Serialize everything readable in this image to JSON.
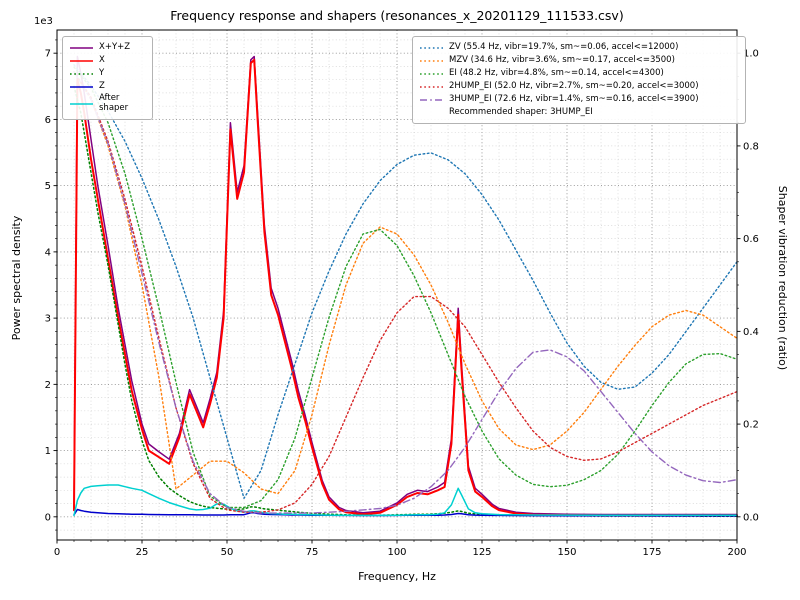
{
  "chart_data": {
    "type": "line",
    "title": "Frequency response and shapers (resonances_x_20201129_111533.csv)",
    "xlabel": "Frequency, Hz",
    "ylabel_left": "Power spectral density",
    "ylabel_right": "Shaper vibration reduction (ratio)",
    "offset_text": "1e3",
    "recommended_text": "Recommended shaper: 3HUMP_EI",
    "grid": "both",
    "xlim": [
      0,
      200
    ],
    "ylim_left": [
      -350,
      7350
    ],
    "ylim_right": [
      -0.05,
      1.05
    ],
    "xticks": [
      0,
      25,
      50,
      75,
      100,
      125,
      150,
      175,
      200
    ],
    "xtick_labels": [
      "0",
      "25",
      "50",
      "75",
      "100",
      "125",
      "150",
      "175",
      "200"
    ],
    "yticks_left": [
      0,
      1000,
      2000,
      3000,
      4000,
      5000,
      6000,
      7000
    ],
    "ytick_labels_left": [
      "0",
      "1",
      "2",
      "3",
      "4",
      "5",
      "6",
      "7"
    ],
    "yticks_right": [
      0,
      0.2,
      0.4,
      0.6,
      0.8,
      1.0
    ],
    "ytick_labels_right": [
      "0.0",
      "0.2",
      "0.4",
      "0.6",
      "0.8",
      "1.0"
    ],
    "minor_x": 5,
    "minor_y_left": 200,
    "minor_y_right": 0.05,
    "series": [
      {
        "id": "xyz",
        "label": "X+Y+Z",
        "legend_side": "left",
        "color": "#800080",
        "dash": "solid",
        "width": 1.5,
        "axis": "left",
        "x": [
          5,
          6,
          7,
          8,
          10,
          12,
          15,
          18,
          20,
          22,
          25,
          27,
          30,
          33,
          36,
          39,
          41,
          43,
          45,
          47,
          49,
          51,
          53,
          55,
          57,
          58,
          59,
          61,
          63,
          65,
          67,
          69,
          71,
          73,
          75,
          78,
          80,
          83,
          85,
          90,
          95,
          100,
          103,
          106,
          109,
          112,
          114,
          116,
          118,
          119,
          121,
          123,
          125,
          128,
          130,
          135,
          140,
          150,
          160,
          170,
          180,
          190,
          200
        ],
        "y": [
          150,
          6950,
          6700,
          6400,
          5700,
          5000,
          4100,
          3150,
          2600,
          2050,
          1400,
          1100,
          980,
          870,
          1260,
          1920,
          1670,
          1420,
          1780,
          2180,
          3100,
          5950,
          4900,
          5300,
          6900,
          6950,
          6100,
          4400,
          3450,
          3150,
          2750,
          2350,
          1900,
          1530,
          1120,
          550,
          300,
          140,
          95,
          60,
          85,
          210,
          340,
          400,
          380,
          450,
          520,
          1180,
          3150,
          2300,
          760,
          430,
          340,
          190,
          125,
          70,
          50,
          40,
          35,
          35,
          35,
          35,
          35
        ]
      },
      {
        "id": "x",
        "label": "X",
        "legend_side": "left",
        "color": "#ff0000",
        "dash": "solid",
        "width": 2,
        "axis": "left",
        "x": [
          5,
          6,
          7,
          8,
          10,
          12,
          15,
          18,
          20,
          22,
          25,
          27,
          30,
          33,
          36,
          39,
          41,
          43,
          45,
          47,
          49,
          51,
          53,
          55,
          57,
          58,
          59,
          61,
          63,
          65,
          67,
          69,
          71,
          73,
          75,
          78,
          80,
          83,
          85,
          90,
          95,
          100,
          103,
          106,
          109,
          112,
          114,
          116,
          118,
          119,
          121,
          123,
          125,
          128,
          130,
          135,
          140,
          150,
          160,
          170,
          180,
          190,
          200
        ],
        "y": [
          100,
          6600,
          6400,
          6100,
          5400,
          4800,
          3900,
          3000,
          2450,
          1900,
          1320,
          1000,
          900,
          800,
          1200,
          1850,
          1600,
          1350,
          1700,
          2100,
          3000,
          5850,
          4800,
          5200,
          6850,
          6900,
          6000,
          4300,
          3350,
          3050,
          2650,
          2250,
          1800,
          1450,
          1050,
          500,
          260,
          110,
          70,
          40,
          60,
          180,
          300,
          360,
          340,
          400,
          450,
          1100,
          3050,
          2200,
          700,
          380,
          300,
          160,
          100,
          50,
          30,
          25,
          20,
          20,
          20,
          20,
          20
        ]
      },
      {
        "id": "y",
        "label": "Y",
        "legend_side": "left",
        "color": "#008000",
        "dash": "dotted",
        "width": 1.5,
        "axis": "left",
        "x": [
          5,
          6,
          7,
          8,
          10,
          12,
          15,
          18,
          20,
          22,
          25,
          27,
          30,
          33,
          36,
          39,
          41,
          43,
          45,
          47,
          49,
          51,
          53,
          55,
          57,
          58,
          59,
          61,
          63,
          65,
          67,
          69,
          71,
          73,
          75,
          78,
          80,
          83,
          85,
          90,
          95,
          100,
          103,
          106,
          109,
          112,
          114,
          116,
          118,
          119,
          121,
          123,
          125,
          128,
          130,
          135,
          140,
          150,
          160,
          170,
          180,
          190,
          200
        ],
        "y": [
          6500,
          6300,
          6100,
          5800,
          5200,
          4600,
          3800,
          2900,
          2300,
          1750,
          1150,
          850,
          600,
          430,
          320,
          230,
          190,
          160,
          140,
          130,
          120,
          115,
          110,
          120,
          150,
          150,
          140,
          120,
          110,
          100,
          90,
          80,
          70,
          60,
          55,
          45,
          40,
          35,
          30,
          25,
          25,
          30,
          35,
          40,
          40,
          45,
          55,
          70,
          90,
          80,
          55,
          45,
          40,
          32,
          28,
          22,
          18,
          15,
          12,
          12,
          12,
          10,
          10
        ]
      },
      {
        "id": "z",
        "label": "Z",
        "legend_side": "left",
        "color": "#0000cc",
        "dash": "solid",
        "width": 1.5,
        "axis": "left",
        "x": [
          5,
          6,
          7,
          8,
          10,
          12,
          15,
          18,
          20,
          22,
          25,
          27,
          30,
          33,
          36,
          39,
          41,
          43,
          45,
          47,
          49,
          51,
          53,
          55,
          57,
          58,
          59,
          61,
          63,
          65,
          67,
          69,
          71,
          73,
          75,
          78,
          80,
          83,
          85,
          90,
          95,
          100,
          103,
          106,
          109,
          112,
          114,
          116,
          118,
          119,
          121,
          123,
          125,
          128,
          130,
          135,
          140,
          150,
          160,
          170,
          180,
          190,
          200
        ],
        "y": [
          30,
          110,
          95,
          85,
          70,
          60,
          50,
          45,
          42,
          40,
          38,
          35,
          33,
          32,
          30,
          30,
          29,
          28,
          28,
          28,
          28,
          30,
          30,
          32,
          60,
          60,
          50,
          40,
          35,
          33,
          30,
          28,
          27,
          26,
          25,
          24,
          23,
          22,
          22,
          20,
          20,
          22,
          23,
          24,
          24,
          25,
          27,
          35,
          50,
          45,
          30,
          26,
          24,
          22,
          21,
          20,
          18,
          16,
          15,
          15,
          14,
          14,
          14
        ]
      },
      {
        "id": "after_shaper",
        "label": "After shaper",
        "legend_side": "left",
        "color": "#00d0d0",
        "dash": "solid",
        "width": 1.5,
        "axis": "left",
        "x": [
          5,
          6,
          7,
          8,
          10,
          12,
          15,
          18,
          20,
          22,
          25,
          27,
          30,
          33,
          36,
          39,
          41,
          43,
          45,
          47,
          49,
          51,
          53,
          55,
          57,
          58,
          59,
          61,
          63,
          65,
          67,
          69,
          71,
          73,
          75,
          78,
          80,
          83,
          85,
          90,
          95,
          100,
          103,
          106,
          109,
          112,
          114,
          116,
          118,
          119,
          121,
          123,
          125,
          128,
          130,
          135,
          140,
          150,
          160,
          170,
          180,
          190,
          200
        ],
        "y": [
          20,
          250,
          360,
          430,
          460,
          470,
          480,
          480,
          455,
          430,
          400,
          350,
          280,
          215,
          165,
          120,
          105,
          110,
          130,
          195,
          190,
          130,
          90,
          70,
          90,
          90,
          80,
          60,
          50,
          45,
          40,
          38,
          35,
          33,
          30,
          28,
          26,
          25,
          24,
          22,
          22,
          25,
          28,
          30,
          32,
          40,
          60,
          180,
          430,
          330,
          120,
          60,
          45,
          38,
          34,
          30,
          28,
          26,
          25,
          25,
          24,
          24,
          24
        ]
      },
      {
        "id": "zv",
        "label": "ZV (55.4 Hz, vibr=19.7%, sm~=0.06, accel<=12000)",
        "legend_side": "right",
        "color": "#1f77b4",
        "dash": "dotted",
        "width": 1.4,
        "axis": "right",
        "x": [
          5,
          10,
          15,
          20,
          25,
          30,
          35,
          40,
          45,
          50,
          55,
          60,
          65,
          70,
          75,
          80,
          85,
          90,
          95,
          100,
          105,
          110,
          115,
          120,
          125,
          130,
          135,
          140,
          145,
          150,
          155,
          160,
          165,
          170,
          175,
          180,
          185,
          190,
          195,
          200
        ],
        "y": [
          0.975,
          0.93,
          0.875,
          0.81,
          0.73,
          0.64,
          0.54,
          0.43,
          0.3,
          0.17,
          0.04,
          0.1,
          0.22,
          0.33,
          0.44,
          0.53,
          0.61,
          0.675,
          0.725,
          0.76,
          0.78,
          0.785,
          0.77,
          0.74,
          0.695,
          0.64,
          0.575,
          0.51,
          0.44,
          0.375,
          0.325,
          0.29,
          0.275,
          0.28,
          0.31,
          0.35,
          0.4,
          0.45,
          0.5,
          0.55
        ]
      },
      {
        "id": "mzv",
        "label": "MZV (34.6 Hz, vibr=3.6%, sm~=0.17, accel<=3500)",
        "legend_side": "right",
        "color": "#ff7f0e",
        "dash": "dotted",
        "width": 1.4,
        "axis": "right",
        "x": [
          5,
          10,
          15,
          20,
          25,
          30,
          35,
          40,
          45,
          50,
          55,
          60,
          65,
          70,
          75,
          80,
          85,
          90,
          95,
          100,
          105,
          110,
          115,
          120,
          125,
          130,
          135,
          140,
          145,
          150,
          155,
          160,
          165,
          170,
          175,
          180,
          185,
          190,
          195,
          200
        ],
        "y": [
          0.96,
          0.9,
          0.8,
          0.67,
          0.5,
          0.3,
          0.06,
          0.09,
          0.12,
          0.12,
          0.095,
          0.06,
          0.05,
          0.1,
          0.22,
          0.37,
          0.5,
          0.59,
          0.625,
          0.61,
          0.565,
          0.5,
          0.42,
          0.33,
          0.25,
          0.19,
          0.155,
          0.145,
          0.155,
          0.185,
          0.225,
          0.275,
          0.325,
          0.37,
          0.41,
          0.435,
          0.445,
          0.435,
          0.41,
          0.385
        ]
      },
      {
        "id": "ei",
        "label": "EI (48.2 Hz, vibr=4.8%, sm~=0.14, accel<=4300)",
        "legend_side": "right",
        "color": "#2ca02c",
        "dash": "dotted",
        "width": 1.4,
        "axis": "right",
        "x": [
          5,
          10,
          15,
          20,
          25,
          30,
          35,
          40,
          45,
          50,
          55,
          60,
          65,
          70,
          75,
          80,
          85,
          90,
          95,
          100,
          105,
          110,
          115,
          120,
          125,
          130,
          135,
          140,
          145,
          150,
          155,
          160,
          165,
          170,
          175,
          180,
          185,
          190,
          195,
          200
        ],
        "y": [
          0.97,
          0.925,
          0.85,
          0.74,
          0.6,
          0.45,
          0.29,
          0.14,
          0.045,
          0.02,
          0.02,
          0.035,
          0.08,
          0.17,
          0.3,
          0.43,
          0.54,
          0.61,
          0.62,
          0.585,
          0.52,
          0.44,
          0.35,
          0.26,
          0.185,
          0.125,
          0.09,
          0.07,
          0.065,
          0.068,
          0.08,
          0.1,
          0.135,
          0.185,
          0.24,
          0.29,
          0.33,
          0.35,
          0.352,
          0.34
        ]
      },
      {
        "id": "2hump_ei",
        "label": "2HUMP_EI (52.0 Hz, vibr=2.7%, sm~=0.20, accel<=3000)",
        "legend_side": "right",
        "color": "#d62728",
        "dash": "dotted",
        "width": 1.4,
        "axis": "right",
        "x": [
          5,
          10,
          15,
          20,
          25,
          30,
          35,
          40,
          45,
          50,
          55,
          60,
          65,
          70,
          75,
          80,
          85,
          90,
          95,
          100,
          105,
          110,
          115,
          120,
          125,
          130,
          135,
          140,
          145,
          150,
          155,
          160,
          165,
          170,
          175,
          180,
          185,
          190,
          195,
          200
        ],
        "y": [
          0.96,
          0.905,
          0.81,
          0.685,
          0.54,
          0.385,
          0.235,
          0.115,
          0.04,
          0.015,
          0.01,
          0.01,
          0.015,
          0.03,
          0.07,
          0.13,
          0.215,
          0.3,
          0.38,
          0.44,
          0.475,
          0.475,
          0.45,
          0.41,
          0.35,
          0.29,
          0.235,
          0.185,
          0.15,
          0.13,
          0.122,
          0.125,
          0.14,
          0.16,
          0.18,
          0.2,
          0.22,
          0.24,
          0.255,
          0.27
        ]
      },
      {
        "id": "3hump_ei",
        "label": "3HUMP_EI (72.6 Hz, vibr=1.4%, sm~=0.16, accel<=3900)",
        "legend_side": "right",
        "color": "#9467bd",
        "dash": "dashdot",
        "width": 1.4,
        "axis": "right",
        "x": [
          5,
          10,
          15,
          20,
          25,
          30,
          35,
          40,
          45,
          50,
          55,
          60,
          65,
          70,
          75,
          80,
          85,
          90,
          95,
          100,
          105,
          110,
          115,
          120,
          125,
          130,
          135,
          140,
          145,
          150,
          155,
          160,
          165,
          170,
          175,
          180,
          185,
          190,
          195,
          200
        ],
        "y": [
          0.96,
          0.9,
          0.805,
          0.675,
          0.525,
          0.375,
          0.235,
          0.12,
          0.05,
          0.02,
          0.012,
          0.008,
          0.008,
          0.008,
          0.008,
          0.01,
          0.012,
          0.015,
          0.018,
          0.025,
          0.04,
          0.065,
          0.1,
          0.15,
          0.21,
          0.27,
          0.32,
          0.355,
          0.36,
          0.345,
          0.315,
          0.27,
          0.225,
          0.18,
          0.14,
          0.11,
          0.09,
          0.078,
          0.074,
          0.08
        ]
      }
    ]
  }
}
